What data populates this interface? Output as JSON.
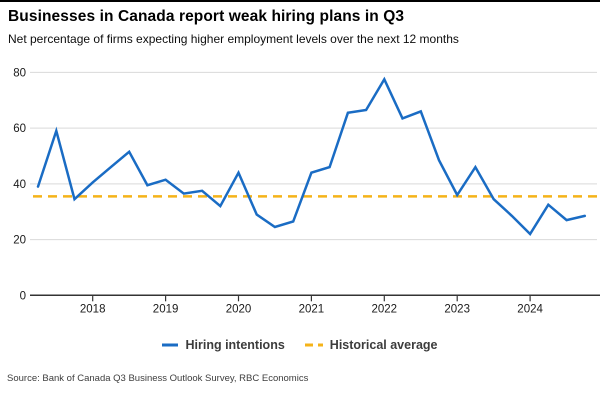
{
  "header": {
    "title": "Businesses in Canada report weak hiring plans in Q3",
    "subtitle": "Net percentage of firms expecting higher employment levels over the next 12 months"
  },
  "legend": {
    "items": [
      {
        "label": "Hiring intentions",
        "color": "#1a6cc4",
        "style": "solid"
      },
      {
        "label": "Historical average",
        "color": "#f5b319",
        "style": "dashed"
      }
    ]
  },
  "source": "Source: Bank of Canada Q3 Business Outlook Survey, RBC Economics",
  "colors": {
    "hiring_line": "#1a6cc4",
    "average_line": "#f5b319",
    "gridline": "#d9d9d9",
    "axis": "#333333",
    "tick_label": "#1a1a1a"
  },
  "chart_data": {
    "type": "line",
    "title": "Businesses in Canada report weak hiring plans in Q3",
    "subtitle": "Net percentage of firms expecting higher employment levels over the next 12 months",
    "xlabel": "",
    "ylabel": "",
    "ylim": [
      0,
      80
    ],
    "y_ticks": [
      0,
      20,
      40,
      60,
      80
    ],
    "x_ticks": [
      2018,
      2019,
      2020,
      2021,
      2022,
      2023,
      2024
    ],
    "grid": "horizontal",
    "legend_position": "bottom-center",
    "x": [
      2017.25,
      2017.5,
      2017.75,
      2018,
      2018.25,
      2018.5,
      2018.75,
      2019,
      2019.25,
      2019.5,
      2019.75,
      2020,
      2020.25,
      2020.5,
      2020.75,
      2021,
      2021.25,
      2021.5,
      2021.75,
      2022,
      2022.25,
      2022.5,
      2022.75,
      2023,
      2023.25,
      2023.5,
      2023.75,
      2024,
      2024.25,
      2024.5,
      2024.75
    ],
    "series": [
      {
        "name": "Hiring intentions",
        "color": "#1a6cc4",
        "style": "solid",
        "values": [
          39,
          59,
          34.5,
          40.5,
          46,
          51.5,
          39.5,
          41.5,
          36.5,
          37.5,
          32,
          44,
          29,
          24.5,
          26.5,
          44,
          46,
          65.5,
          66.5,
          77.5,
          63.5,
          66,
          48.5,
          36,
          46,
          34.5,
          28.5,
          22,
          32.5,
          27,
          28.5
        ]
      },
      {
        "name": "Historical average",
        "color": "#f5b319",
        "style": "dashed",
        "value": 35.5
      }
    ]
  }
}
